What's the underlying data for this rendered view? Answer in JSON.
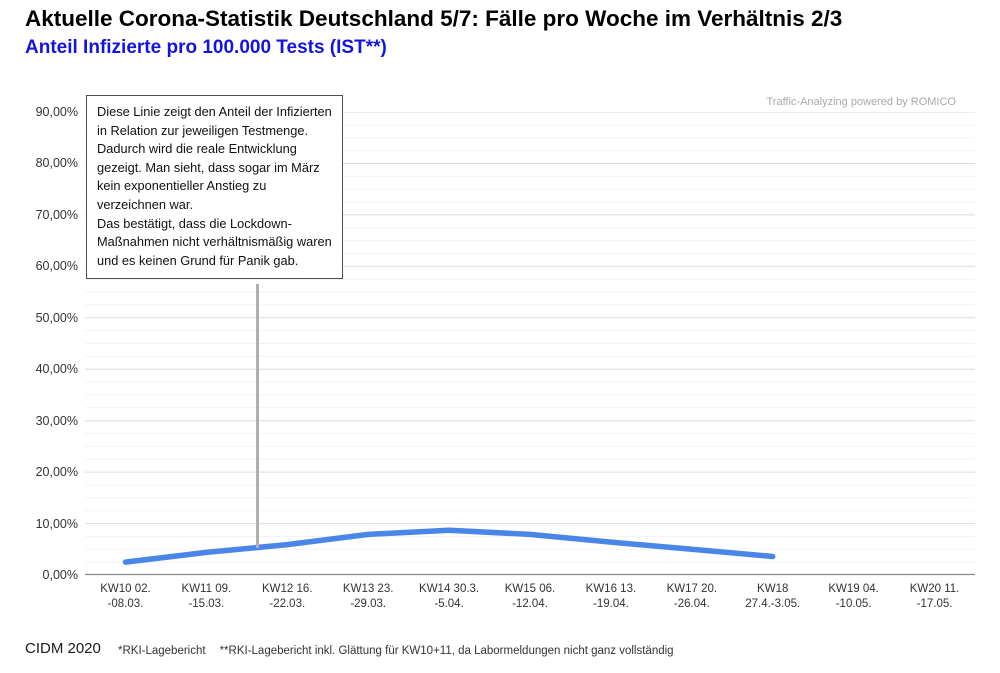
{
  "header": {
    "title": "Aktuelle Corona-Statistik Deutschland 5/7: Fälle pro Woche im Verhältnis 2/3",
    "subtitle": "Anteil Infizierte pro 100.000 Tests (IST**)"
  },
  "watermark": "Traffic-Analyzing powered by ROMICO",
  "annotation": {
    "paragraph1": "Diese Linie zeigt den Anteil der Infizierten in Relation zur jeweiligen Testmenge. Dadurch wird die reale Entwicklung gezeigt. Man sieht, dass sogar im März kein exponentieller Anstieg zu verzeichnen war.",
    "paragraph2": "Das bestätigt, dass die Lockdown-Maßnahmen nicht verhältnismäßig waren und es keinen Grund für Panik gab."
  },
  "footer": {
    "source": "CIDM 2020",
    "note1": "*RKI-Lagebericht",
    "note2": "**RKI-Lagebericht inkl. Glättung für KW10+11, da Labormeldungen nicht ganz vollständig"
  },
  "chart_data": {
    "type": "line",
    "title": "Anteil Infizierte pro 100.000 Tests (IST**)",
    "categories": [
      [
        "KW10 02.",
        "-08.03."
      ],
      [
        "KW11 09.",
        "-15.03."
      ],
      [
        "KW12 16.",
        "-22.03."
      ],
      [
        "KW13 23.",
        "-29.03."
      ],
      [
        "KW14 30.3.",
        "-5.04."
      ],
      [
        "KW15 06.",
        "-12.04."
      ],
      [
        "KW16 13.",
        "-19.04."
      ],
      [
        "KW17 20.",
        "-26.04."
      ],
      [
        "KW18",
        "27.4.-3.05."
      ],
      [
        "KW19 04.",
        "-10.05."
      ],
      [
        "KW20 11.",
        "-17.05."
      ]
    ],
    "values": [
      2.5,
      4.4,
      5.9,
      7.9,
      8.7,
      7.9,
      6.4,
      5.0,
      3.6,
      null,
      null
    ],
    "unit": "percent of tests positive",
    "ylim": [
      0,
      90
    ],
    "ytick_step": 10,
    "ygrid_minor_step": 2.5,
    "ytick_labels": [
      "0,00%",
      "10,00%",
      "20,00%",
      "30,00%",
      "40,00%",
      "50,00%",
      "60,00%",
      "70,00%",
      "80,00%",
      "90,00%"
    ],
    "line_color": "#4a86e8",
    "grid": true,
    "legend": "none"
  }
}
